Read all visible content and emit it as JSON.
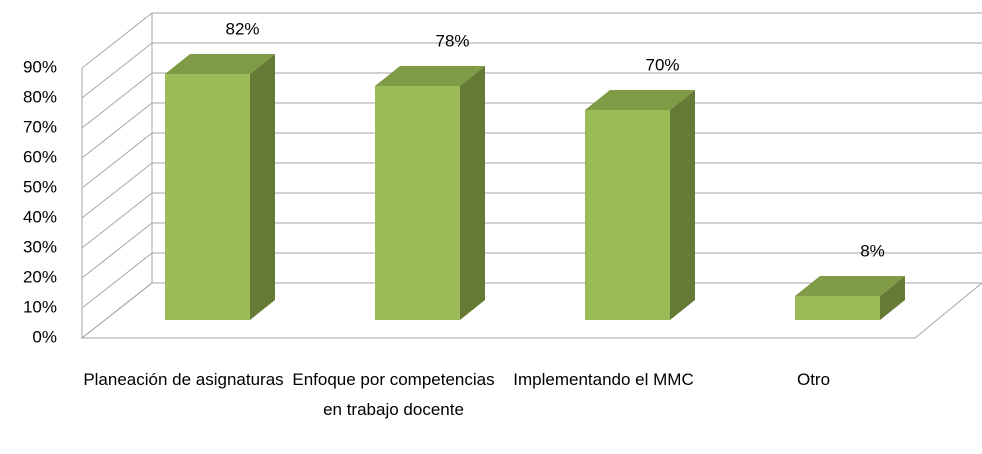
{
  "chart_data": {
    "type": "bar3d",
    "categories": [
      "Planeación de asignaturas",
      "Enfoque por competencias en trabajo docente",
      "Implementando el MMC",
      "Otro"
    ],
    "values": [
      82,
      78,
      70,
      8
    ],
    "value_labels": [
      "82%",
      "78%",
      "70%",
      "8%"
    ],
    "color": "#9bbb59",
    "ylim": [
      0,
      90
    ],
    "yticks": [
      {
        "value": 0,
        "label": "0%"
      },
      {
        "value": 10,
        "label": "10%"
      },
      {
        "value": 20,
        "label": "20%"
      },
      {
        "value": 30,
        "label": "30%"
      },
      {
        "value": 40,
        "label": "40%"
      },
      {
        "value": 50,
        "label": "50%"
      },
      {
        "value": 60,
        "label": "60%"
      },
      {
        "value": 70,
        "label": "70%"
      },
      {
        "value": 80,
        "label": "80%"
      },
      {
        "value": 90,
        "label": "90%"
      }
    ],
    "grid": true
  }
}
